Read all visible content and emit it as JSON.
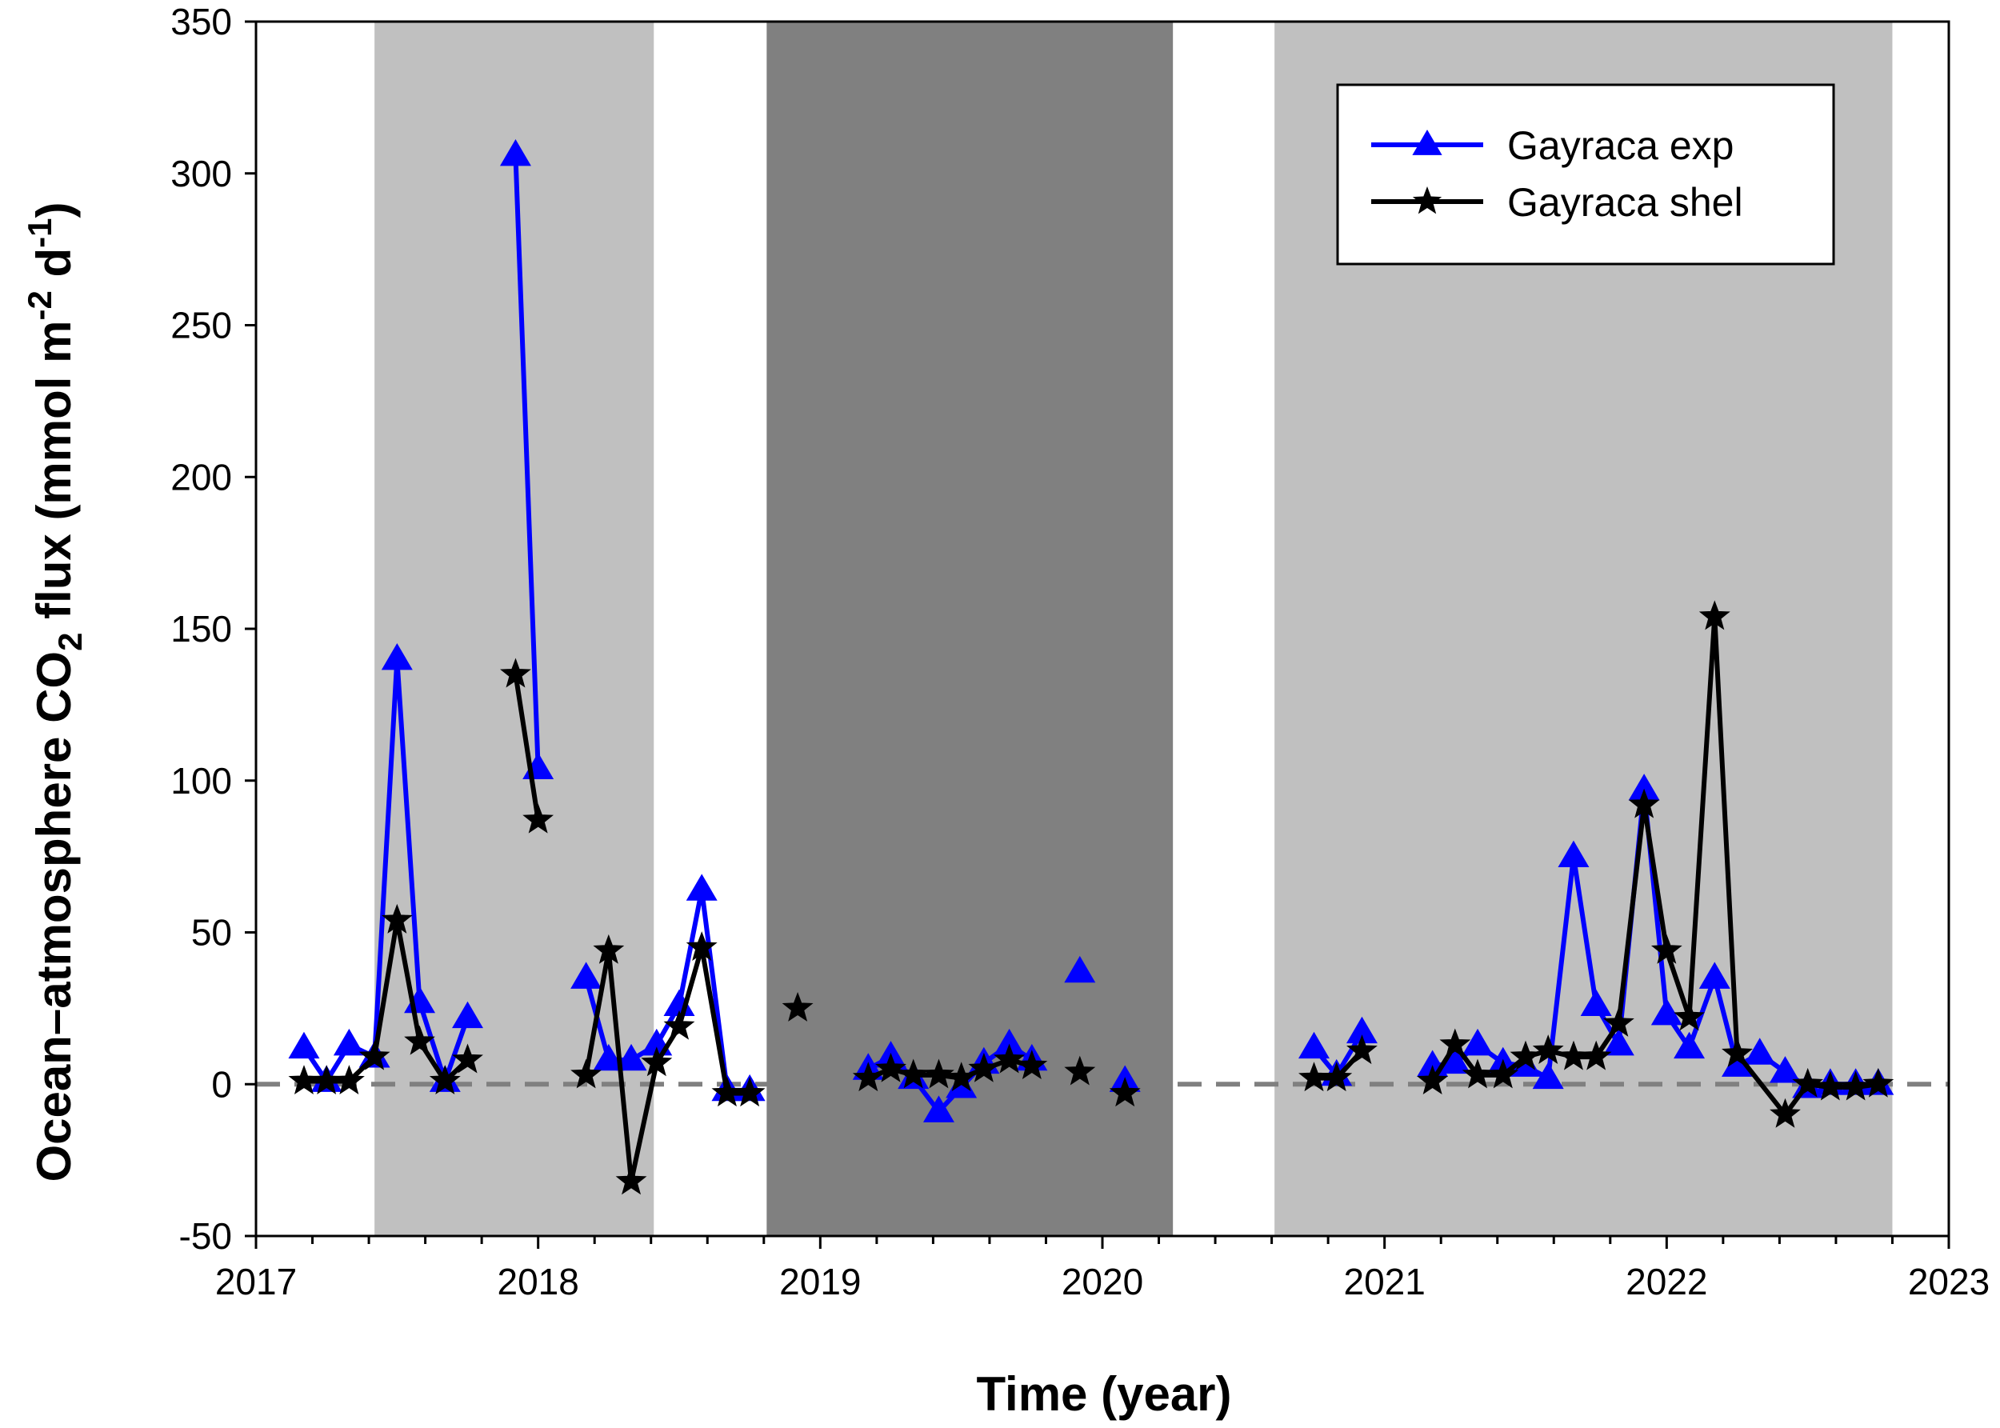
{
  "chart_data": {
    "type": "line",
    "title": "",
    "xlabel": "Time (year)",
    "ylabel": {
      "part1": "Ocean–atmosphere CO",
      "sub": "2",
      "part2": " flux (mmol m",
      "sup1": "-2",
      "part3": " d",
      "sup2": "-1",
      "part4": ")"
    },
    "xlim": [
      2017,
      2023
    ],
    "ylim": [
      -50,
      350
    ],
    "xticks": [
      2017,
      2018,
      2019,
      2020,
      2021,
      2022,
      2023
    ],
    "xtick_labels": [
      "2017",
      "2018",
      "2019",
      "2020",
      "2021",
      "2022",
      "2023"
    ],
    "yticks": [
      -50,
      0,
      50,
      100,
      150,
      200,
      250,
      300,
      350
    ],
    "ytick_labels": [
      "-50",
      "0",
      "50",
      "100",
      "150",
      "200",
      "250",
      "300",
      "350"
    ],
    "reference_line": {
      "y": 0,
      "style": "dashed",
      "color": "#808080"
    },
    "shaded_periods": [
      {
        "x_start": 2017.42,
        "x_end": 2018.41,
        "color": "#c0c0c0"
      },
      {
        "x_start": 2018.81,
        "x_end": 2020.25,
        "color": "#808080"
      },
      {
        "x_start": 2020.61,
        "x_end": 2022.8,
        "color": "#c0c0c0"
      }
    ],
    "legend_position": "top-right",
    "series": [
      {
        "name": "Gayraca exp",
        "color": "#0000ff",
        "marker": "triangle",
        "segments": [
          [
            [
              2017.17,
              12
            ],
            [
              2017.25,
              1
            ],
            [
              2017.33,
              13
            ],
            [
              2017.42,
              9
            ],
            [
              2017.5,
              140
            ],
            [
              2017.58,
              27
            ],
            [
              2017.67,
              1
            ],
            [
              2017.75,
              22
            ]
          ],
          [
            [
              2017.92,
              306
            ],
            [
              2018.0,
              104
            ]
          ],
          [
            [
              2018.17,
              35
            ],
            [
              2018.25,
              8
            ],
            [
              2018.33,
              8
            ],
            [
              2018.42,
              13
            ],
            [
              2018.5,
              26
            ],
            [
              2018.58,
              64
            ],
            [
              2018.67,
              -2
            ],
            [
              2018.75,
              -2
            ]
          ],
          [
            [
              2019.17,
              5
            ],
            [
              2019.25,
              9
            ],
            [
              2019.33,
              2
            ],
            [
              2019.42,
              -9
            ],
            [
              2019.5,
              -1
            ],
            [
              2019.58,
              7
            ],
            [
              2019.67,
              13
            ],
            [
              2019.75,
              8
            ]
          ],
          [
            [
              2019.92,
              37
            ]
          ],
          [
            [
              2020.08,
              1
            ]
          ],
          [
            [
              2020.75,
              12
            ],
            [
              2020.83,
              3
            ],
            [
              2020.92,
              17
            ]
          ],
          [
            [
              2021.17,
              6
            ],
            [
              2021.25,
              7
            ],
            [
              2021.33,
              13
            ],
            [
              2021.42,
              7
            ],
            [
              2021.5,
              6
            ],
            [
              2021.58,
              2
            ],
            [
              2021.67,
              75
            ],
            [
              2021.75,
              26
            ],
            [
              2021.83,
              13
            ],
            [
              2021.92,
              97
            ],
            [
              2022.0,
              23
            ],
            [
              2022.08,
              12
            ],
            [
              2022.17,
              35
            ],
            [
              2022.25,
              6
            ],
            [
              2022.33,
              10
            ],
            [
              2022.42,
              4
            ],
            [
              2022.5,
              -1
            ],
            [
              2022.58,
              0
            ],
            [
              2022.67,
              0
            ],
            [
              2022.75,
              0
            ]
          ]
        ]
      },
      {
        "name": "Gayraca shel",
        "color": "#000000",
        "marker": "star",
        "segments": [
          [
            [
              2017.17,
              1
            ],
            [
              2017.25,
              1
            ],
            [
              2017.33,
              1
            ],
            [
              2017.42,
              9
            ],
            [
              2017.5,
              54
            ],
            [
              2017.58,
              14
            ],
            [
              2017.67,
              1
            ],
            [
              2017.75,
              8
            ]
          ],
          [
            [
              2017.92,
              135
            ],
            [
              2018.0,
              87
            ]
          ],
          [
            [
              2018.17,
              3
            ],
            [
              2018.25,
              44
            ],
            [
              2018.33,
              -32
            ],
            [
              2018.42,
              7
            ],
            [
              2018.5,
              19
            ],
            [
              2018.58,
              45
            ],
            [
              2018.67,
              -3
            ],
            [
              2018.75,
              -3
            ]
          ],
          [
            [
              2018.92,
              25
            ]
          ],
          [
            [
              2019.17,
              2
            ],
            [
              2019.25,
              5
            ],
            [
              2019.33,
              3
            ],
            [
              2019.42,
              3
            ],
            [
              2019.5,
              2
            ],
            [
              2019.58,
              5
            ],
            [
              2019.67,
              8
            ],
            [
              2019.75,
              6
            ]
          ],
          [
            [
              2019.92,
              4
            ]
          ],
          [
            [
              2020.08,
              -3
            ]
          ],
          [
            [
              2020.75,
              2
            ],
            [
              2020.83,
              2
            ],
            [
              2020.92,
              11
            ]
          ],
          [
            [
              2021.17,
              1
            ],
            [
              2021.25,
              13
            ],
            [
              2021.33,
              3
            ],
            [
              2021.42,
              3
            ],
            [
              2021.5,
              9
            ],
            [
              2021.58,
              11
            ],
            [
              2021.67,
              9
            ],
            [
              2021.75,
              9
            ],
            [
              2021.83,
              20
            ],
            [
              2021.92,
              92
            ],
            [
              2022.0,
              44
            ],
            [
              2022.08,
              22
            ],
            [
              2022.17,
              154
            ],
            [
              2022.25,
              10
            ],
            [
              2022.42,
              -10
            ],
            [
              2022.5,
              0
            ],
            [
              2022.58,
              -1
            ],
            [
              2022.67,
              -1
            ],
            [
              2022.75,
              0
            ]
          ]
        ]
      }
    ]
  }
}
